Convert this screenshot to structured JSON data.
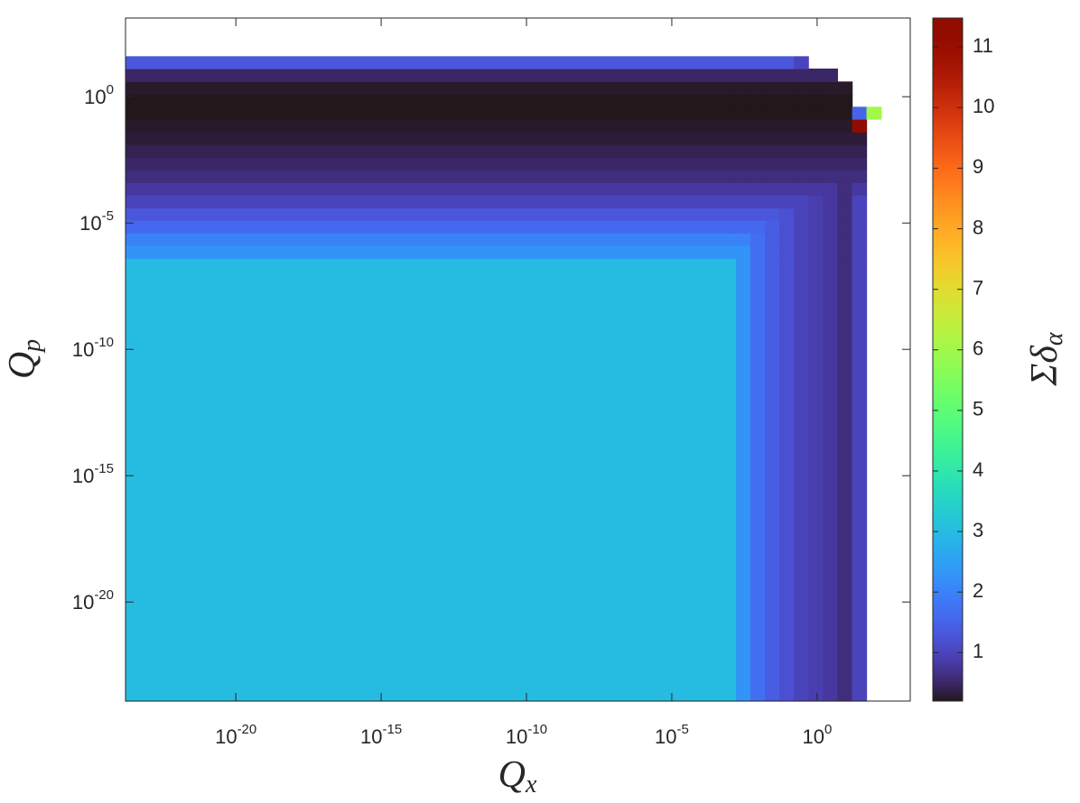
{
  "chart_data": {
    "type": "heatmap",
    "xlabel": {
      "text": "Q",
      "subscript": "x"
    },
    "ylabel": {
      "text": "Q",
      "subscript": "p"
    },
    "colorbar_label": {
      "text": "Σδ",
      "subscript": "α"
    },
    "xscale": "log",
    "yscale": "log",
    "xlim": [
      1.6e-24,
      1600
    ],
    "ylim": [
      1.2e-24,
      1300
    ],
    "xticks": [
      {
        "value": 1e-20,
        "label": "10",
        "exponent": "-20"
      },
      {
        "value": 1e-15,
        "label": "10",
        "exponent": "-15"
      },
      {
        "value": 1e-10,
        "label": "10",
        "exponent": "-10"
      },
      {
        "value": 1e-05,
        "label": "10",
        "exponent": "-5"
      },
      {
        "value": 1,
        "label": "10",
        "exponent": "0"
      }
    ],
    "yticks": [
      {
        "value": 1e-20,
        "label": "10",
        "exponent": "-20"
      },
      {
        "value": 1e-15,
        "label": "10",
        "exponent": "-15"
      },
      {
        "value": 1e-10,
        "label": "10",
        "exponent": "-10"
      },
      {
        "value": 1e-05,
        "label": "10",
        "exponent": "-5"
      },
      {
        "value": 1,
        "label": "10",
        "exponent": "0"
      }
    ],
    "x_edges": [
      1.6e-24,
      0.0016,
      0.005,
      0.016,
      0.05,
      0.16,
      0.5,
      1.6,
      5,
      16,
      50,
      160
    ],
    "y_edges": [
      1.2e-24,
      4e-07,
      1.3e-06,
      4e-06,
      1.3e-05,
      4e-05,
      0.00013,
      0.0004,
      0.0013,
      0.004,
      0.013,
      0.04,
      0.13,
      0.4,
      1.3,
      4,
      13,
      40
    ],
    "z": [
      [
        3,
        2.3,
        1.7,
        1.4,
        1.2,
        1.0,
        0.9,
        0.8,
        0.6,
        1.0,
        null
      ],
      [
        2.3,
        2.3,
        1.7,
        1.4,
        1.2,
        1.0,
        0.9,
        0.8,
        0.6,
        1.0,
        null
      ],
      [
        2.0,
        2.0,
        1.7,
        1.4,
        1.2,
        1.0,
        0.9,
        0.8,
        0.6,
        1.0,
        null
      ],
      [
        1.6,
        1.6,
        1.6,
        1.4,
        1.2,
        1.0,
        0.9,
        0.8,
        0.6,
        1.0,
        null
      ],
      [
        1.3,
        1.3,
        1.3,
        1.3,
        1.2,
        1.0,
        0.9,
        0.8,
        0.6,
        1.0,
        null
      ],
      [
        1.0,
        1.0,
        1.0,
        1.0,
        1.0,
        1.0,
        0.9,
        0.8,
        0.6,
        1.0,
        null
      ],
      [
        0.8,
        0.8,
        0.8,
        0.8,
        0.8,
        0.8,
        0.8,
        0.8,
        0.6,
        0.8,
        null
      ],
      [
        0.6,
        0.6,
        0.6,
        0.6,
        0.6,
        0.6,
        0.6,
        0.6,
        0.6,
        0.6,
        null
      ],
      [
        0.5,
        0.5,
        0.5,
        0.5,
        0.5,
        0.5,
        0.5,
        0.5,
        0.5,
        0.5,
        null
      ],
      [
        0.4,
        0.4,
        0.4,
        0.4,
        0.4,
        0.4,
        0.4,
        0.4,
        0.4,
        0.4,
        null
      ],
      [
        0.3,
        0.3,
        0.3,
        0.3,
        0.3,
        0.3,
        0.3,
        0.3,
        0.3,
        0.3,
        null
      ],
      [
        0.25,
        0.25,
        0.25,
        0.25,
        0.25,
        0.25,
        0.25,
        0.25,
        0.25,
        11.4,
        null
      ],
      [
        0.2,
        0.2,
        0.2,
        0.2,
        0.2,
        0.2,
        0.2,
        0.2,
        0.2,
        1.5,
        6
      ],
      [
        0.2,
        0.2,
        0.2,
        0.2,
        0.2,
        0.2,
        0.2,
        0.2,
        0.2,
        null,
        null
      ],
      [
        0.25,
        0.25,
        0.25,
        0.25,
        0.25,
        0.25,
        0.25,
        0.25,
        0.25,
        null,
        null
      ],
      [
        0.5,
        0.5,
        0.5,
        0.5,
        0.5,
        0.5,
        0.5,
        0.5,
        null,
        null,
        null
      ],
      [
        1.3,
        1.3,
        1.3,
        1.3,
        1.3,
        1.0,
        null,
        null,
        null,
        null,
        null
      ]
    ],
    "colormap": "turbo",
    "clim": [
      0.2,
      11.48
    ],
    "cticks": [
      1,
      2,
      3,
      4,
      5,
      6,
      7,
      8,
      9,
      10,
      11
    ],
    "grid": false
  }
}
